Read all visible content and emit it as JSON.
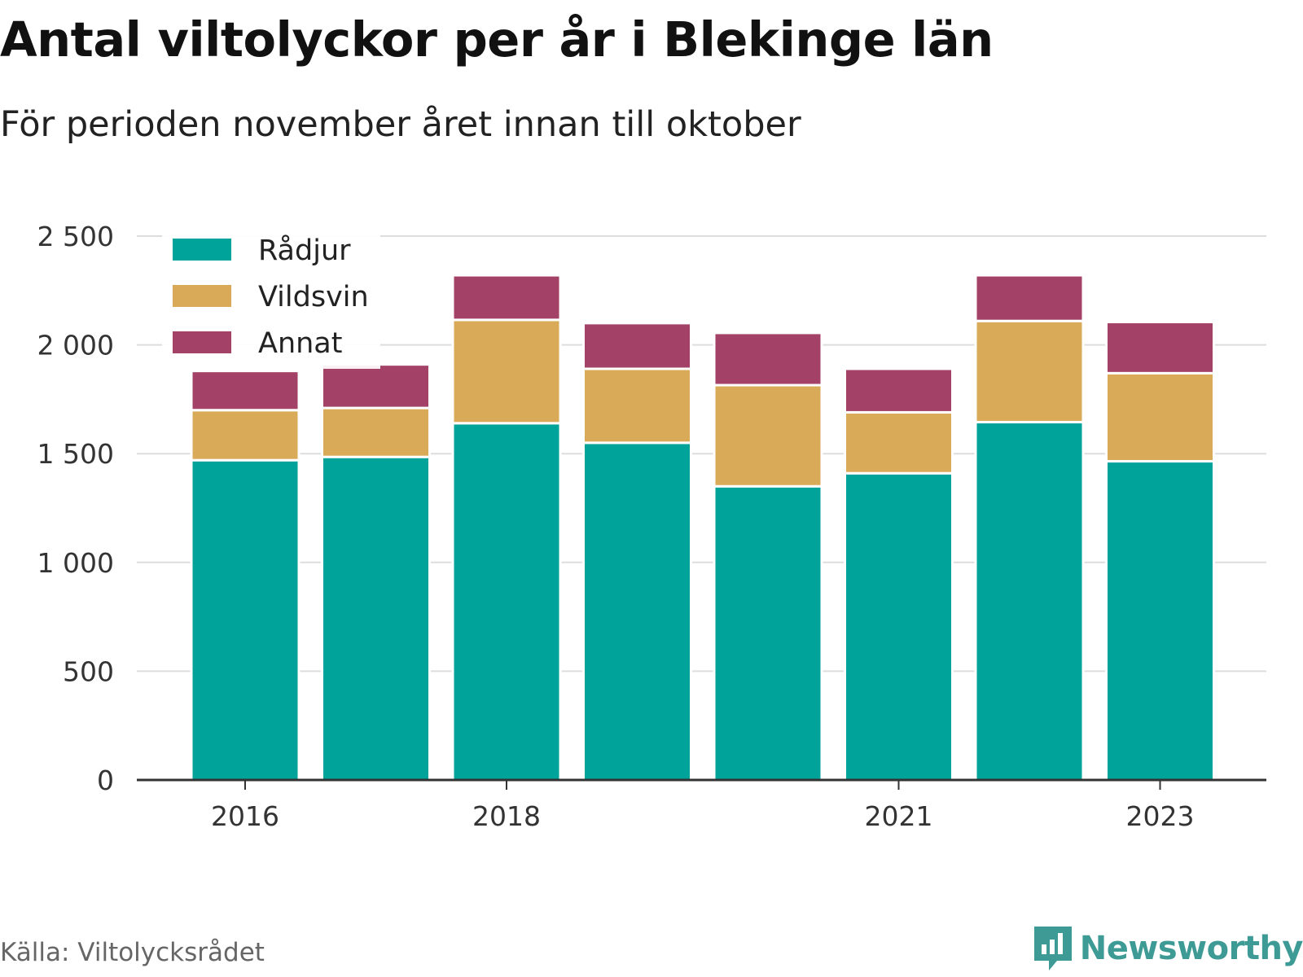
{
  "title": "Antal viltolyckor per år i Blekinge län",
  "subtitle": "För perioden november året innan till oktober",
  "source": "Källa: Viltolycksrådet",
  "brand": {
    "name": "Newsworthy",
    "icon": "newsworthy-logo-icon",
    "color": "#3e9a94"
  },
  "chart_data": {
    "type": "bar",
    "stacked": true,
    "categories": [
      "2016",
      "2017",
      "2018",
      "2019",
      "2020",
      "2021",
      "2022",
      "2023"
    ],
    "x_tick_labels": [
      "2016",
      "2018",
      "2021",
      "2023"
    ],
    "series": [
      {
        "name": "Rådjur",
        "color": "#00a39a",
        "values": [
          1470,
          1485,
          1640,
          1550,
          1350,
          1410,
          1645,
          1465
        ]
      },
      {
        "name": "Vildsvin",
        "color": "#d9ab58",
        "values": [
          230,
          225,
          475,
          340,
          465,
          280,
          465,
          405
        ]
      },
      {
        "name": "Annat",
        "color": "#a34166",
        "values": [
          180,
          200,
          205,
          210,
          240,
          200,
          210,
          235
        ]
      }
    ],
    "ylim": [
      0,
      2500
    ],
    "yticks": [
      0,
      500,
      1000,
      1500,
      2000,
      2500
    ],
    "ytick_labels": [
      "0",
      "500",
      "1 000",
      "1 500",
      "2 000",
      "2 500"
    ],
    "xlabel": "",
    "ylabel": "",
    "grid": true,
    "legend": "top-left"
  }
}
